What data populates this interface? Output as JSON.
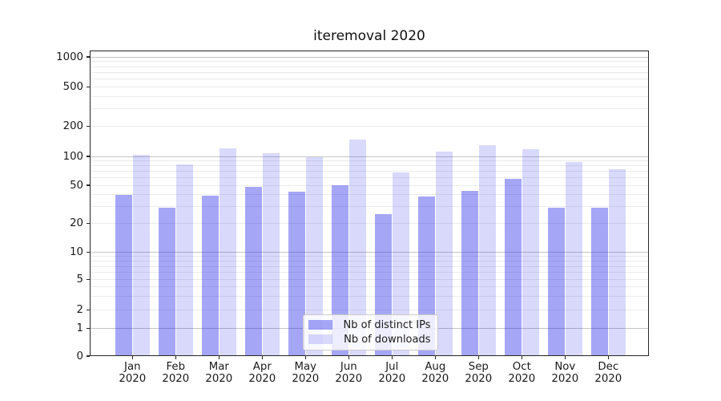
{
  "chart_data": {
    "type": "bar",
    "title": "iteremoval 2020",
    "categories": [
      "Jan",
      "Feb",
      "Mar",
      "Apr",
      "May",
      "Jun",
      "Jul",
      "Aug",
      "Sep",
      "Oct",
      "Nov",
      "Dec"
    ],
    "x_tick_second_line": "2020",
    "series": [
      {
        "name": "Nb of distinct IPs",
        "color": "rgba(20,20,235,0.38)",
        "values": [
          40,
          29,
          39,
          48,
          43,
          50,
          25,
          38,
          44,
          58,
          29,
          29
        ]
      },
      {
        "name": "Nb of downloads",
        "color": "rgba(20,20,235,0.16)",
        "values": [
          104,
          83,
          121,
          108,
          98,
          149,
          68,
          112,
          130,
          119,
          88,
          73
        ]
      }
    ],
    "yscale": "symlog",
    "ylim": [
      0,
      1170
    ],
    "y_tick_values": [
      1000,
      500,
      200,
      100,
      50,
      20,
      10,
      5,
      2,
      1,
      0
    ],
    "y_tick_labels": [
      "1000",
      "500",
      "200",
      "100",
      "50",
      "20",
      "10",
      "5",
      "2",
      "1",
      "0"
    ],
    "y_minor_gridline_values": [
      2,
      3,
      4,
      5,
      6,
      7,
      8,
      9,
      20,
      30,
      40,
      50,
      60,
      70,
      80,
      90,
      200,
      300,
      400,
      500,
      600,
      700,
      800,
      900
    ],
    "y_major_gridline_values": [
      1,
      10,
      100,
      1000
    ],
    "grid": "both",
    "legend_position": "lower center",
    "legend_entries": [
      "Nb of distinct IPs",
      "Nb of downloads"
    ]
  },
  "colors": {
    "grid_major": "#c5c5c5",
    "grid_minor": "#ebebeb",
    "spine": "#262626",
    "text": "#1a1a1a",
    "legend_border": "#cccccc",
    "background": "#ffffff"
  }
}
